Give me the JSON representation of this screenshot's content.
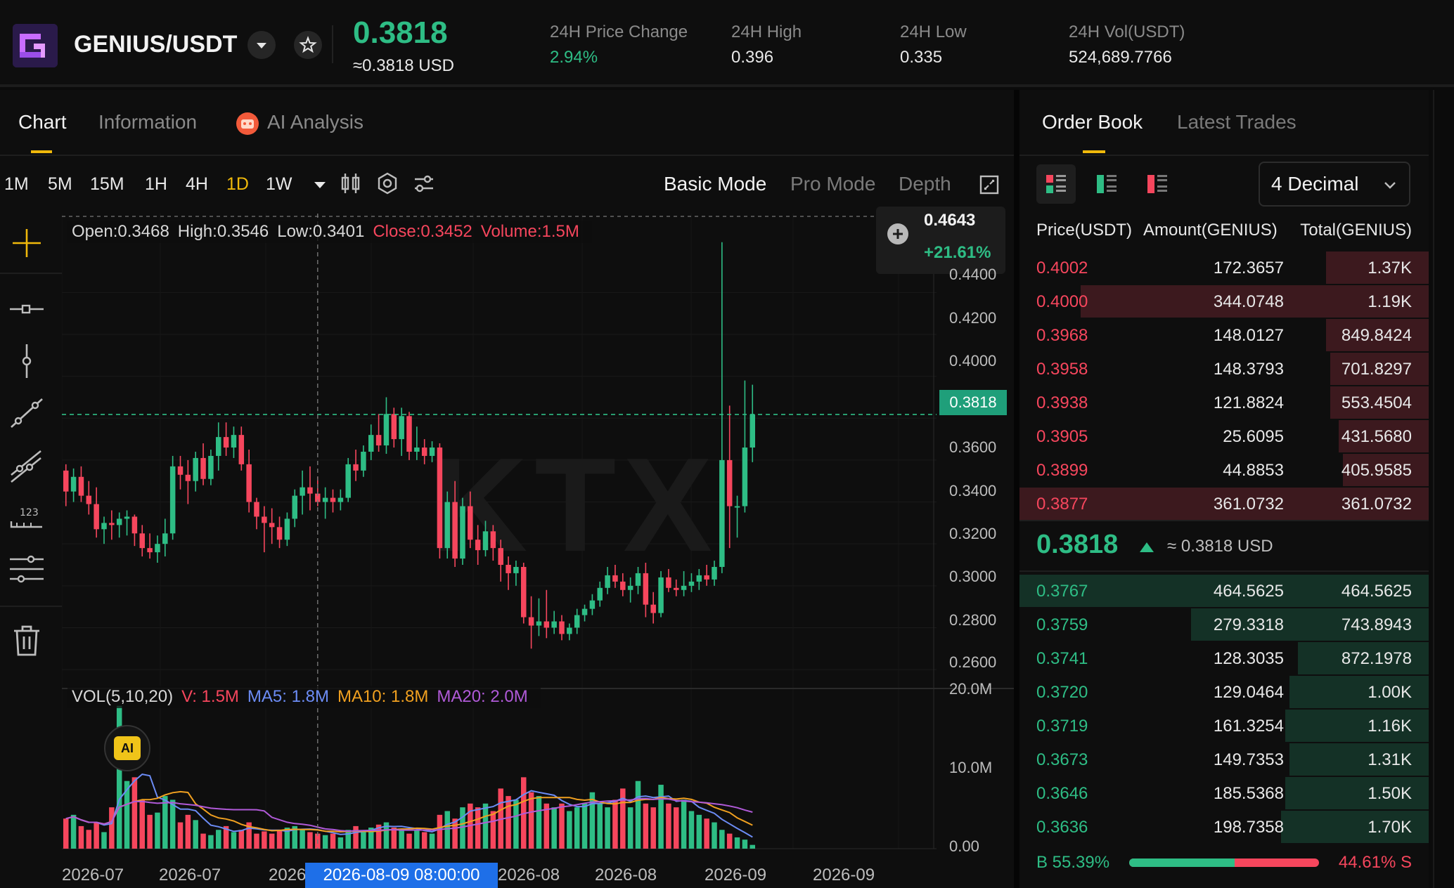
{
  "header": {
    "pair": "GENIUS/USDT",
    "last_price": "0.3818",
    "last_price_usd": "≈0.3818 USD",
    "stats": [
      {
        "label": "24H Price Change",
        "value": "2.94%",
        "color": "#2ebd85"
      },
      {
        "label": "24H High",
        "value": "0.396",
        "color": "#e8e8e8"
      },
      {
        "label": "24H Low",
        "value": "0.335",
        "color": "#e8e8e8"
      },
      {
        "label": "24H Vol(USDT)",
        "value": "524,689.7766",
        "color": "#e8e8e8"
      }
    ]
  },
  "tabs": {
    "chart": "Chart",
    "information": "Information",
    "ai_analysis": "AI Analysis"
  },
  "timeframes": [
    "1M",
    "5M",
    "15M",
    "1H",
    "4H",
    "1D",
    "1W"
  ],
  "active_timeframe": "1D",
  "modes": {
    "basic": "Basic Mode",
    "pro": "Pro Mode",
    "depth": "Depth"
  },
  "ohlc": {
    "open": "Open:0.3468",
    "high": "High:0.3546",
    "low": "Low:0.3401",
    "close": "Close:0.3452",
    "volume": "Volume:1.5M"
  },
  "high_badge": {
    "price": "0.4643",
    "change": "+21.61%"
  },
  "current_price_label": "0.3818",
  "cursor_time": "2026-08-09 08:00:00",
  "volume_info": {
    "label": "VOL(5,10,20)",
    "v": "V: 1.5M",
    "ma5": "MA5: 1.8M",
    "ma10": "MA10: 1.8M",
    "ma20": "MA20: 2.0M"
  },
  "ai_badge": "AI",
  "chart_data": {
    "type": "candlestick",
    "price_axis_ticks": [
      "0.4400",
      "0.4200",
      "0.4000",
      "0.3600",
      "0.3400",
      "0.3200",
      "0.3000",
      "0.2800",
      "0.2600"
    ],
    "volume_axis_ticks": [
      "20.0M",
      "10.0M",
      "0.00"
    ],
    "time_ticks": [
      "2026-07",
      "2026-07",
      "2026",
      "2026-08",
      "2026-08",
      "2026-09",
      "2026-09"
    ],
    "price_range": [
      0.255,
      0.475
    ],
    "volume_range": [
      0,
      20
    ],
    "colors": {
      "up": "#2ebd85",
      "down": "#f6465d",
      "ma5": "#6c8cf5",
      "ma10": "#f0a020",
      "ma20": "#b05ad8"
    },
    "candles": [
      {
        "o": 0.355,
        "h": 0.358,
        "l": 0.338,
        "c": 0.345,
        "v": 4.0
      },
      {
        "o": 0.345,
        "h": 0.356,
        "l": 0.34,
        "c": 0.352,
        "v": 4.5
      },
      {
        "o": 0.352,
        "h": 0.357,
        "l": 0.34,
        "c": 0.343,
        "v": 3.0
      },
      {
        "o": 0.343,
        "h": 0.35,
        "l": 0.334,
        "c": 0.339,
        "v": 2.5
      },
      {
        "o": 0.339,
        "h": 0.347,
        "l": 0.323,
        "c": 0.327,
        "v": 3.5
      },
      {
        "o": 0.327,
        "h": 0.333,
        "l": 0.32,
        "c": 0.33,
        "v": 2.2
      },
      {
        "o": 0.33,
        "h": 0.336,
        "l": 0.322,
        "c": 0.329,
        "v": 5.5
      },
      {
        "o": 0.329,
        "h": 0.335,
        "l": 0.323,
        "c": 0.332,
        "v": 19.0
      },
      {
        "o": 0.332,
        "h": 0.336,
        "l": 0.324,
        "c": 0.333,
        "v": 9.0
      },
      {
        "o": 0.333,
        "h": 0.334,
        "l": 0.319,
        "c": 0.325,
        "v": 9.5
      },
      {
        "o": 0.325,
        "h": 0.329,
        "l": 0.314,
        "c": 0.318,
        "v": 6.5
      },
      {
        "o": 0.318,
        "h": 0.325,
        "l": 0.313,
        "c": 0.316,
        "v": 4.5
      },
      {
        "o": 0.316,
        "h": 0.324,
        "l": 0.311,
        "c": 0.32,
        "v": 4.8
      },
      {
        "o": 0.32,
        "h": 0.332,
        "l": 0.314,
        "c": 0.325,
        "v": 7.0
      },
      {
        "o": 0.325,
        "h": 0.362,
        "l": 0.322,
        "c": 0.357,
        "v": 6.5
      },
      {
        "o": 0.357,
        "h": 0.362,
        "l": 0.346,
        "c": 0.353,
        "v": 3.5
      },
      {
        "o": 0.353,
        "h": 0.36,
        "l": 0.339,
        "c": 0.35,
        "v": 4.5
      },
      {
        "o": 0.35,
        "h": 0.364,
        "l": 0.345,
        "c": 0.361,
        "v": 3.8
      },
      {
        "o": 0.361,
        "h": 0.368,
        "l": 0.348,
        "c": 0.351,
        "v": 2.0
      },
      {
        "o": 0.351,
        "h": 0.365,
        "l": 0.348,
        "c": 0.362,
        "v": 1.8
      },
      {
        "o": 0.362,
        "h": 0.378,
        "l": 0.355,
        "c": 0.371,
        "v": 2.5
      },
      {
        "o": 0.371,
        "h": 0.378,
        "l": 0.362,
        "c": 0.366,
        "v": 3.0
      },
      {
        "o": 0.366,
        "h": 0.376,
        "l": 0.361,
        "c": 0.372,
        "v": 2.2
      },
      {
        "o": 0.372,
        "h": 0.376,
        "l": 0.355,
        "c": 0.358,
        "v": 2.5
      },
      {
        "o": 0.358,
        "h": 0.365,
        "l": 0.335,
        "c": 0.34,
        "v": 3.5
      },
      {
        "o": 0.34,
        "h": 0.342,
        "l": 0.327,
        "c": 0.333,
        "v": 2.0
      },
      {
        "o": 0.333,
        "h": 0.338,
        "l": 0.316,
        "c": 0.33,
        "v": 2.3
      },
      {
        "o": 0.33,
        "h": 0.337,
        "l": 0.32,
        "c": 0.328,
        "v": 2.0
      },
      {
        "o": 0.328,
        "h": 0.333,
        "l": 0.318,
        "c": 0.322,
        "v": 2.5
      },
      {
        "o": 0.322,
        "h": 0.335,
        "l": 0.319,
        "c": 0.332,
        "v": 2.8
      },
      {
        "o": 0.332,
        "h": 0.346,
        "l": 0.328,
        "c": 0.343,
        "v": 3.0
      },
      {
        "o": 0.343,
        "h": 0.355,
        "l": 0.334,
        "c": 0.347,
        "v": 2.6
      },
      {
        "o": 0.347,
        "h": 0.357,
        "l": 0.336,
        "c": 0.344,
        "v": 2.2
      },
      {
        "o": 0.344,
        "h": 0.352,
        "l": 0.338,
        "c": 0.34,
        "v": 2.0
      },
      {
        "o": 0.34,
        "h": 0.347,
        "l": 0.332,
        "c": 0.342,
        "v": 1.8
      },
      {
        "o": 0.342,
        "h": 0.346,
        "l": 0.335,
        "c": 0.34,
        "v": 2.0
      },
      {
        "o": 0.34,
        "h": 0.346,
        "l": 0.336,
        "c": 0.342,
        "v": 1.5
      },
      {
        "o": 0.342,
        "h": 0.361,
        "l": 0.34,
        "c": 0.358,
        "v": 2.5
      },
      {
        "o": 0.358,
        "h": 0.365,
        "l": 0.35,
        "c": 0.355,
        "v": 3.0
      },
      {
        "o": 0.355,
        "h": 0.367,
        "l": 0.352,
        "c": 0.364,
        "v": 2.4
      },
      {
        "o": 0.364,
        "h": 0.377,
        "l": 0.36,
        "c": 0.372,
        "v": 2.8
      },
      {
        "o": 0.372,
        "h": 0.382,
        "l": 0.364,
        "c": 0.367,
        "v": 3.2
      },
      {
        "o": 0.367,
        "h": 0.39,
        "l": 0.363,
        "c": 0.382,
        "v": 3.5
      },
      {
        "o": 0.382,
        "h": 0.385,
        "l": 0.366,
        "c": 0.37,
        "v": 2.8
      },
      {
        "o": 0.37,
        "h": 0.385,
        "l": 0.362,
        "c": 0.381,
        "v": 2.5
      },
      {
        "o": 0.381,
        "h": 0.383,
        "l": 0.36,
        "c": 0.364,
        "v": 2.0
      },
      {
        "o": 0.364,
        "h": 0.376,
        "l": 0.36,
        "c": 0.366,
        "v": 2.5
      },
      {
        "o": 0.366,
        "h": 0.37,
        "l": 0.358,
        "c": 0.362,
        "v": 2.2
      },
      {
        "o": 0.362,
        "h": 0.369,
        "l": 0.359,
        "c": 0.366,
        "v": 2.0
      },
      {
        "o": 0.366,
        "h": 0.368,
        "l": 0.313,
        "c": 0.318,
        "v": 4.5
      },
      {
        "o": 0.318,
        "h": 0.345,
        "l": 0.313,
        "c": 0.34,
        "v": 5.0
      },
      {
        "o": 0.34,
        "h": 0.35,
        "l": 0.309,
        "c": 0.313,
        "v": 4.0
      },
      {
        "o": 0.313,
        "h": 0.342,
        "l": 0.31,
        "c": 0.338,
        "v": 5.5
      },
      {
        "o": 0.338,
        "h": 0.345,
        "l": 0.318,
        "c": 0.322,
        "v": 6.0
      },
      {
        "o": 0.322,
        "h": 0.329,
        "l": 0.31,
        "c": 0.317,
        "v": 5.5
      },
      {
        "o": 0.317,
        "h": 0.331,
        "l": 0.314,
        "c": 0.326,
        "v": 6.0
      },
      {
        "o": 0.326,
        "h": 0.329,
        "l": 0.312,
        "c": 0.318,
        "v": 5.0
      },
      {
        "o": 0.318,
        "h": 0.322,
        "l": 0.302,
        "c": 0.31,
        "v": 8.0
      },
      {
        "o": 0.31,
        "h": 0.314,
        "l": 0.298,
        "c": 0.306,
        "v": 7.0
      },
      {
        "o": 0.306,
        "h": 0.312,
        "l": 0.3,
        "c": 0.309,
        "v": 6.5
      },
      {
        "o": 0.309,
        "h": 0.311,
        "l": 0.282,
        "c": 0.285,
        "v": 9.5
      },
      {
        "o": 0.285,
        "h": 0.295,
        "l": 0.27,
        "c": 0.281,
        "v": 7.5
      },
      {
        "o": 0.281,
        "h": 0.294,
        "l": 0.276,
        "c": 0.283,
        "v": 7.0
      },
      {
        "o": 0.283,
        "h": 0.298,
        "l": 0.275,
        "c": 0.28,
        "v": 6.0
      },
      {
        "o": 0.28,
        "h": 0.288,
        "l": 0.277,
        "c": 0.283,
        "v": 5.5
      },
      {
        "o": 0.283,
        "h": 0.286,
        "l": 0.274,
        "c": 0.277,
        "v": 6.0
      },
      {
        "o": 0.277,
        "h": 0.282,
        "l": 0.274,
        "c": 0.28,
        "v": 5.0
      },
      {
        "o": 0.28,
        "h": 0.289,
        "l": 0.277,
        "c": 0.286,
        "v": 5.5
      },
      {
        "o": 0.286,
        "h": 0.291,
        "l": 0.283,
        "c": 0.289,
        "v": 6.0
      },
      {
        "o": 0.289,
        "h": 0.296,
        "l": 0.286,
        "c": 0.293,
        "v": 7.5
      },
      {
        "o": 0.293,
        "h": 0.302,
        "l": 0.29,
        "c": 0.299,
        "v": 6.0
      },
      {
        "o": 0.299,
        "h": 0.309,
        "l": 0.296,
        "c": 0.305,
        "v": 5.5
      },
      {
        "o": 0.305,
        "h": 0.31,
        "l": 0.299,
        "c": 0.302,
        "v": 6.5
      },
      {
        "o": 0.302,
        "h": 0.306,
        "l": 0.295,
        "c": 0.298,
        "v": 8.0
      },
      {
        "o": 0.298,
        "h": 0.304,
        "l": 0.292,
        "c": 0.3,
        "v": 5.5
      },
      {
        "o": 0.3,
        "h": 0.309,
        "l": 0.296,
        "c": 0.306,
        "v": 9.0
      },
      {
        "o": 0.306,
        "h": 0.311,
        "l": 0.285,
        "c": 0.291,
        "v": 6.0
      },
      {
        "o": 0.291,
        "h": 0.297,
        "l": 0.282,
        "c": 0.287,
        "v": 5.5
      },
      {
        "o": 0.287,
        "h": 0.307,
        "l": 0.285,
        "c": 0.304,
        "v": 8.5
      },
      {
        "o": 0.304,
        "h": 0.308,
        "l": 0.297,
        "c": 0.299,
        "v": 6.0
      },
      {
        "o": 0.299,
        "h": 0.303,
        "l": 0.295,
        "c": 0.298,
        "v": 5.5
      },
      {
        "o": 0.298,
        "h": 0.307,
        "l": 0.295,
        "c": 0.3,
        "v": 6.5
      },
      {
        "o": 0.3,
        "h": 0.306,
        "l": 0.297,
        "c": 0.302,
        "v": 5.0
      },
      {
        "o": 0.302,
        "h": 0.308,
        "l": 0.298,
        "c": 0.305,
        "v": 4.5
      },
      {
        "o": 0.305,
        "h": 0.31,
        "l": 0.3,
        "c": 0.303,
        "v": 4.0
      },
      {
        "o": 0.303,
        "h": 0.312,
        "l": 0.3,
        "c": 0.309,
        "v": 3.5
      },
      {
        "o": 0.309,
        "h": 0.464,
        "l": 0.306,
        "c": 0.36,
        "v": 2.5
      },
      {
        "o": 0.36,
        "h": 0.386,
        "l": 0.318,
        "c": 0.338,
        "v": 2.0
      },
      {
        "o": 0.338,
        "h": 0.343,
        "l": 0.323,
        "c": 0.338,
        "v": 1.5
      },
      {
        "o": 0.338,
        "h": 0.398,
        "l": 0.335,
        "c": 0.366,
        "v": 1.2
      },
      {
        "o": 0.366,
        "h": 0.396,
        "l": 0.359,
        "c": 0.3818,
        "v": 0.5
      }
    ]
  },
  "order_book": {
    "tabs": {
      "order_book": "Order Book",
      "latest_trades": "Latest Trades"
    },
    "decimal": "4 Decimal",
    "headers": {
      "price": "Price(USDT)",
      "amount": "Amount(GENIUS)",
      "total": "Total(GENIUS)"
    },
    "asks": [
      {
        "price": "0.4002",
        "amount": "172.3657",
        "total": "1.37K",
        "depth": 0.25
      },
      {
        "price": "0.4000",
        "amount": "344.0748",
        "total": "1.19K",
        "depth": 0.85
      },
      {
        "price": "0.3968",
        "amount": "148.0127",
        "total": "849.8424",
        "depth": 0.25
      },
      {
        "price": "0.3958",
        "amount": "148.3793",
        "total": "701.8297",
        "depth": 0.24
      },
      {
        "price": "0.3938",
        "amount": "121.8824",
        "total": "553.4504",
        "depth": 0.24
      },
      {
        "price": "0.3905",
        "amount": "25.6095",
        "total": "431.5680",
        "depth": 0.22
      },
      {
        "price": "0.3899",
        "amount": "44.8853",
        "total": "405.9585",
        "depth": 0.21
      },
      {
        "price": "0.3877",
        "amount": "361.0732",
        "total": "361.0732",
        "depth": 1.0
      }
    ],
    "mid_price": "0.3818",
    "mid_usd": "≈ 0.3818 USD",
    "bids": [
      {
        "price": "0.3767",
        "amount": "464.5625",
        "total": "464.5625",
        "depth": 1.0
      },
      {
        "price": "0.3759",
        "amount": "279.3318",
        "total": "743.8943",
        "depth": 0.58
      },
      {
        "price": "0.3741",
        "amount": "128.3035",
        "total": "872.1978",
        "depth": 0.32
      },
      {
        "price": "0.3720",
        "amount": "129.0464",
        "total": "1.00K",
        "depth": 0.34
      },
      {
        "price": "0.3719",
        "amount": "161.3254",
        "total": "1.16K",
        "depth": 0.35
      },
      {
        "price": "0.3673",
        "amount": "149.7353",
        "total": "1.31K",
        "depth": 0.34
      },
      {
        "price": "0.3646",
        "amount": "185.5368",
        "total": "1.50K",
        "depth": 0.35
      },
      {
        "price": "0.3636",
        "amount": "198.7358",
        "total": "1.70K",
        "depth": 0.36
      }
    ],
    "buy_ratio": "B 55.39%",
    "sell_ratio": "44.61% S",
    "buy_fraction": 0.5539
  }
}
